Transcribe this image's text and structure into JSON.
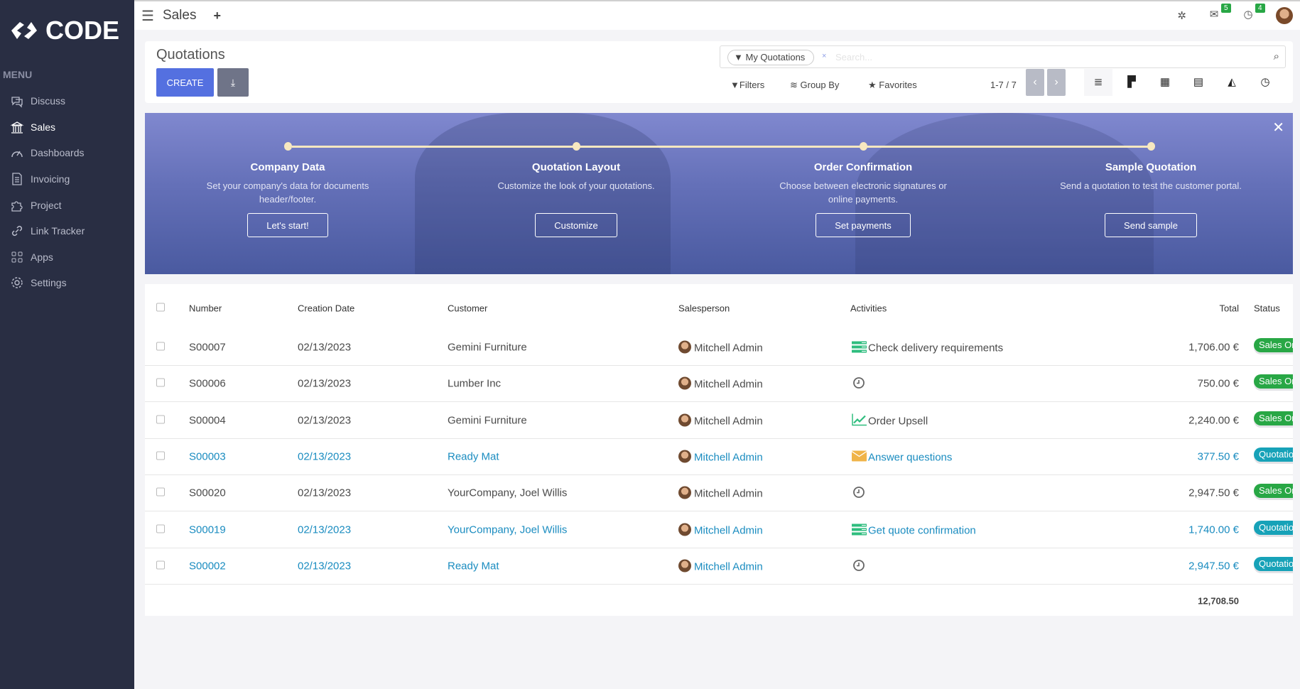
{
  "brand": {
    "name": "CODE"
  },
  "sidebar": {
    "menu_title": "MENU",
    "items": [
      {
        "label": "Discuss",
        "icon": "discuss-icon"
      },
      {
        "label": "Sales",
        "icon": "sales-icon",
        "active": true
      },
      {
        "label": "Dashboards",
        "icon": "dashboard-icon"
      },
      {
        "label": "Invoicing",
        "icon": "invoice-icon"
      },
      {
        "label": "Project",
        "icon": "puzzle-icon"
      },
      {
        "label": "Link Tracker",
        "icon": "link-icon"
      },
      {
        "label": "Apps",
        "icon": "apps-icon"
      },
      {
        "label": "Settings",
        "icon": "gear-icon"
      }
    ]
  },
  "topbar": {
    "app_name": "Sales",
    "messages_count": "5",
    "activities_count": "4"
  },
  "control_panel": {
    "title": "Quotations",
    "create_label": "CREATE",
    "search_facet": "My Quotations",
    "search_placeholder": "Search...",
    "filters": "Filters",
    "group_by": "Group By",
    "favorites": "Favorites",
    "pager": "1-7 / 7"
  },
  "banner": {
    "steps": [
      {
        "title": "Company Data",
        "text": "Set your company's data for documents header/footer.",
        "button": "Let's start!"
      },
      {
        "title": "Quotation Layout",
        "text": "Customize the look of your quotations.",
        "button": "Customize"
      },
      {
        "title": "Order Confirmation",
        "text": "Choose between electronic signatures or online payments.",
        "button": "Set payments"
      },
      {
        "title": "Sample Quotation",
        "text": "Send a quotation to test the customer portal.",
        "button": "Send sample"
      }
    ]
  },
  "table": {
    "headers": {
      "number": "Number",
      "date": "Creation Date",
      "customer": "Customer",
      "salesperson": "Salesperson",
      "activities": "Activities",
      "total": "Total",
      "status": "Status"
    },
    "rows": [
      {
        "number": "S00007",
        "date": "02/13/2023",
        "customer": "Gemini Furniture",
        "salesperson": "Mitchell Admin",
        "activity": "Check delivery requirements",
        "activity_icon": "todo",
        "total": "1,706.00 €",
        "status": "Sales Order",
        "state": "sale"
      },
      {
        "number": "S00006",
        "date": "02/13/2023",
        "customer": "Lumber Inc",
        "salesperson": "Mitchell Admin",
        "activity": "",
        "activity_icon": "clock",
        "total": "750.00 €",
        "status": "Sales Order",
        "state": "sale"
      },
      {
        "number": "S00004",
        "date": "02/13/2023",
        "customer": "Gemini Furniture",
        "salesperson": "Mitchell Admin",
        "activity": "Order Upsell",
        "activity_icon": "upsell",
        "total": "2,240.00 €",
        "status": "Sales Order",
        "state": "sale"
      },
      {
        "number": "S00003",
        "date": "02/13/2023",
        "customer": "Ready Mat",
        "salesperson": "Mitchell Admin",
        "activity": "Answer questions",
        "activity_icon": "email",
        "total": "377.50 €",
        "status": "Quotation",
        "state": "draft"
      },
      {
        "number": "S00020",
        "date": "02/13/2023",
        "customer": "YourCompany, Joel Willis",
        "salesperson": "Mitchell Admin",
        "activity": "",
        "activity_icon": "clock",
        "total": "2,947.50 €",
        "status": "Sales Order",
        "state": "sale"
      },
      {
        "number": "S00019",
        "date": "02/13/2023",
        "customer": "YourCompany, Joel Willis",
        "salesperson": "Mitchell Admin",
        "activity": "Get quote confirmation",
        "activity_icon": "todo",
        "total": "1,740.00 €",
        "status": "Quotation",
        "state": "draft"
      },
      {
        "number": "S00002",
        "date": "02/13/2023",
        "customer": "Ready Mat",
        "salesperson": "Mitchell Admin",
        "activity": "",
        "activity_icon": "clock",
        "total": "2,947.50 €",
        "status": "Quotation",
        "state": "draft"
      }
    ],
    "sum_total": "12,708.50"
  },
  "colors": {
    "sidebar": "#292e43",
    "primary": "#5470e0",
    "sale": "#28a745",
    "draft": "#17a2b8",
    "link": "#1a8cc0"
  }
}
